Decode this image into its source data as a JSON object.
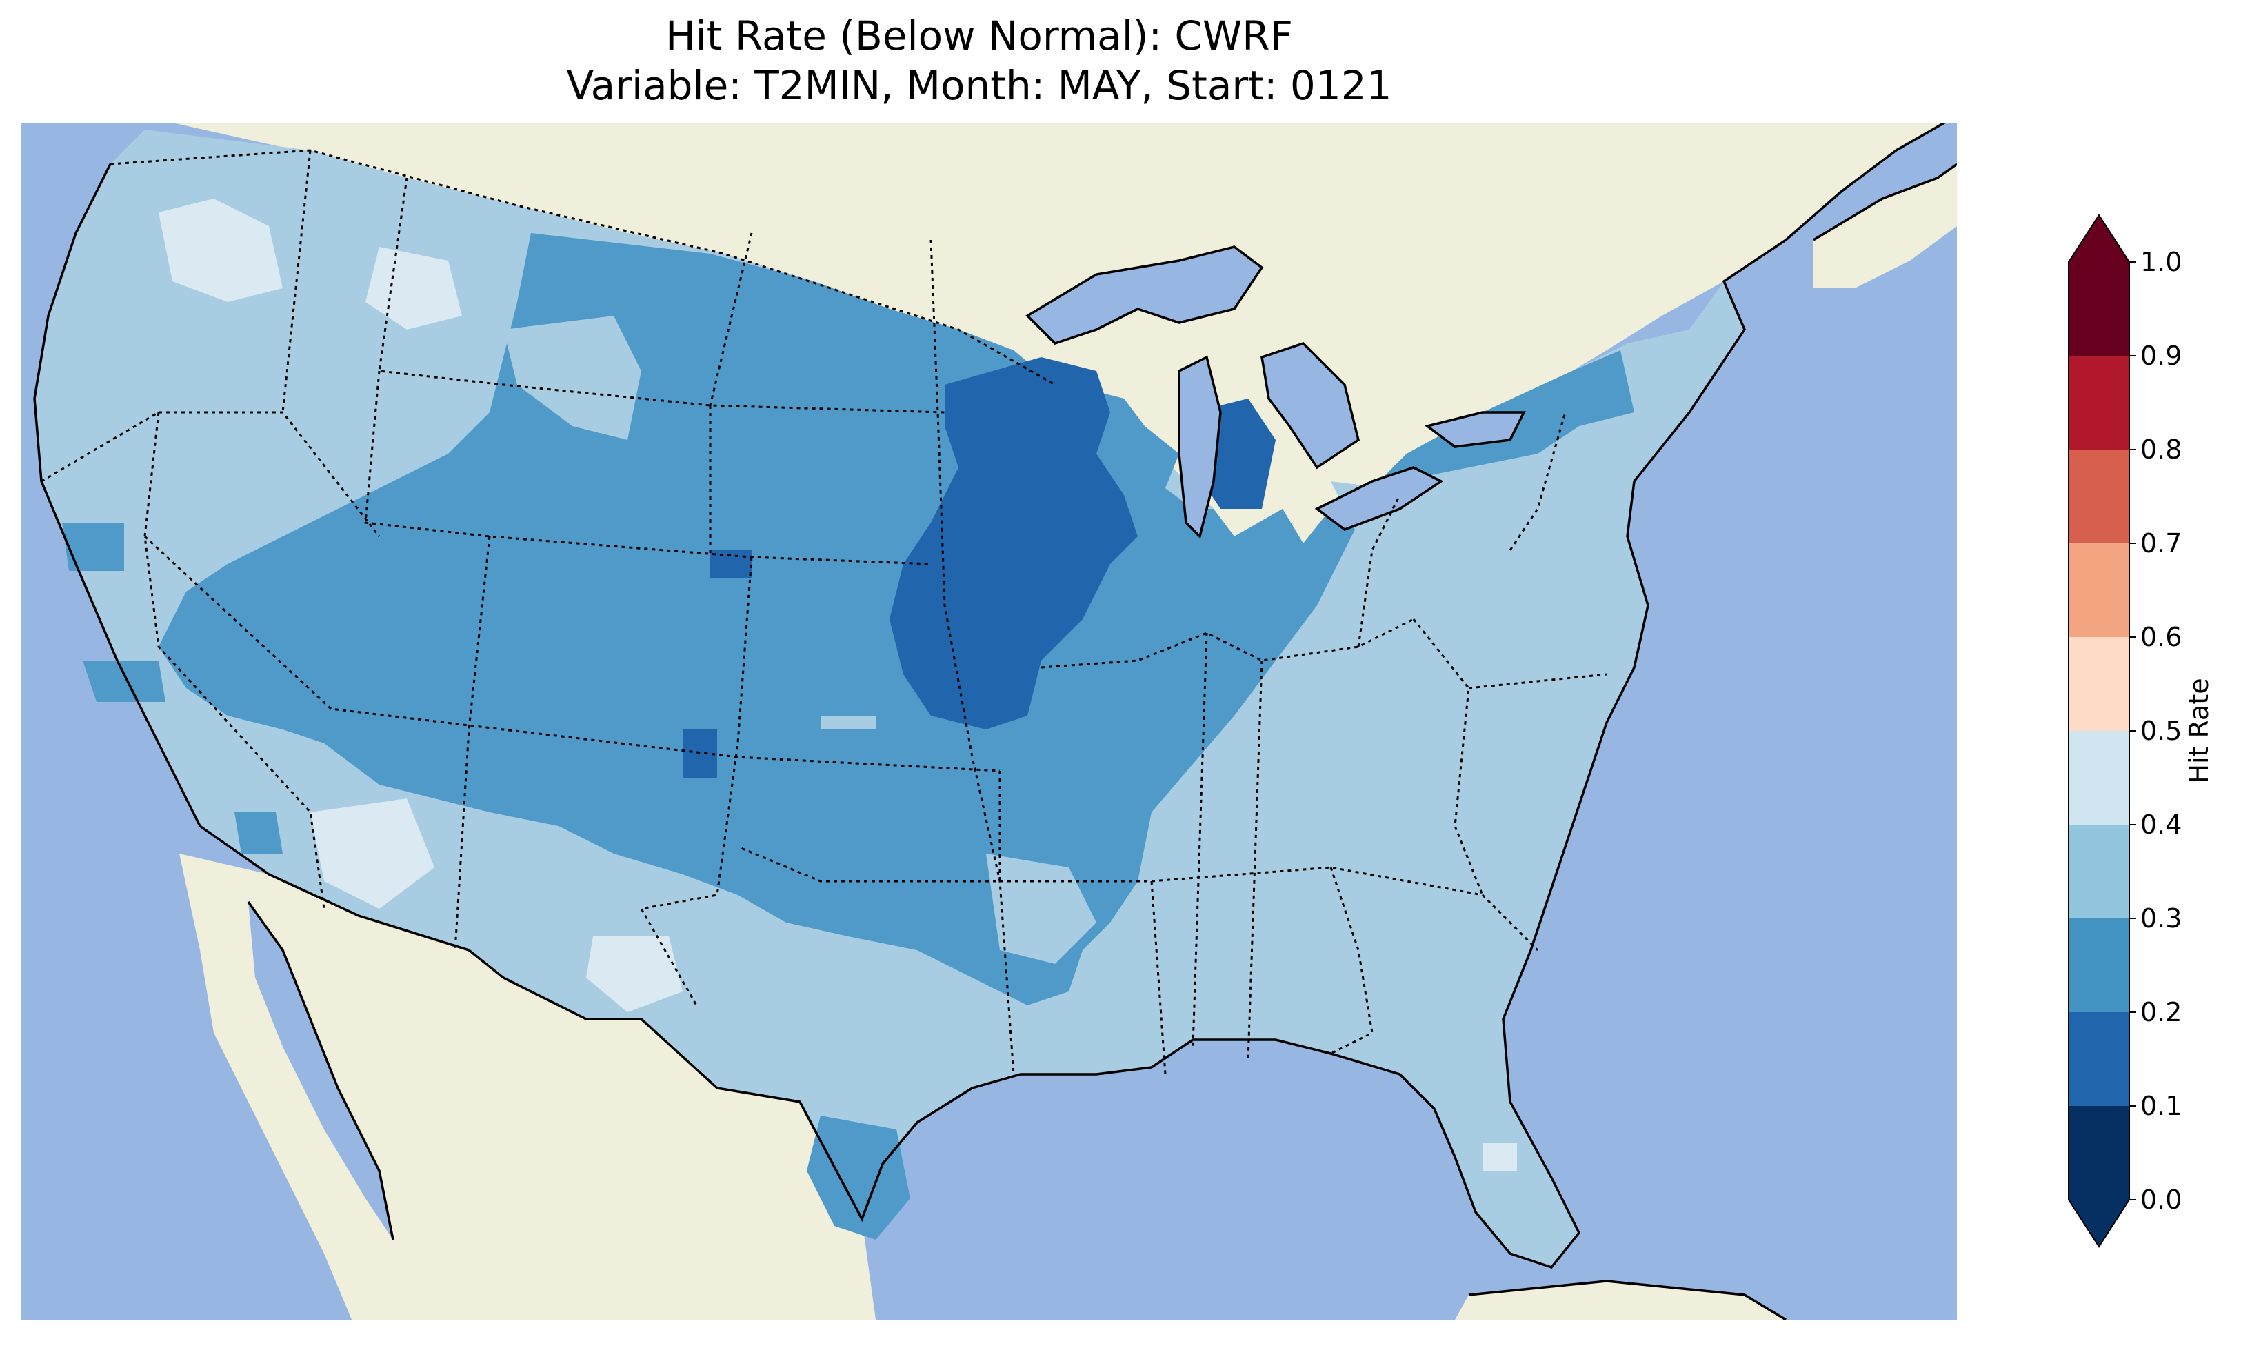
{
  "title": {
    "line1": "Hit Rate (Below Normal): CWRF",
    "line2": "Variable: T2MIN, Month: MAY, Start: 0121"
  },
  "colorbar": {
    "label": "Hit Rate",
    "ticks": [
      "0.0",
      "0.1",
      "0.2",
      "0.3",
      "0.4",
      "0.5",
      "0.6",
      "0.7",
      "0.8",
      "0.9",
      "1.0"
    ],
    "colors": [
      "#053061",
      "#2166ac",
      "#4393c3",
      "#92c5de",
      "#d1e5f0",
      "#fddbc7",
      "#f4a582",
      "#d6604d",
      "#b2182b",
      "#67001f"
    ],
    "extend": "both"
  },
  "map": {
    "ocean_color": "#97b6e1",
    "land_color": "#efefdc",
    "level_colors": {
      "0.1-0.2": "#2166ac",
      "0.2-0.3": "#4f9ac9",
      "0.3-0.4": "#a8cde2",
      "0.4-0.5": "#dbe9f3"
    }
  }
}
